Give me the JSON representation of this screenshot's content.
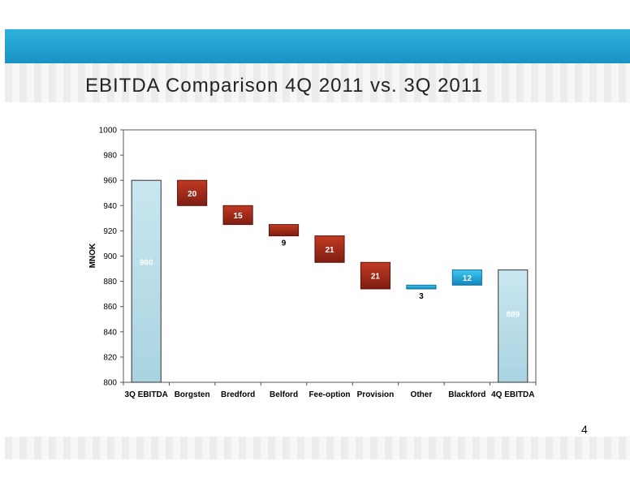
{
  "page": {
    "title": "EBITDA Comparison 4Q 2011 vs. 3Q 2011",
    "page_number": "4"
  },
  "colors": {
    "header_band": "#1e9fd0",
    "total_bar": "#b7dde8",
    "decrease": "#a52a1a",
    "increase": "#1aa9d6"
  },
  "chart_data": {
    "type": "bar",
    "subtype": "waterfall",
    "title": "",
    "xlabel": "",
    "ylabel": "MNOK",
    "ylim": [
      800,
      1000
    ],
    "ytick_step": 20,
    "grid": false,
    "categories": [
      "3Q EBITDA",
      "Borgsten",
      "Bredford",
      "Belford",
      "Fee-option",
      "Provision",
      "Other",
      "Blackford",
      "4Q EBITDA"
    ],
    "steps": [
      {
        "category": "3Q EBITDA",
        "kind": "total",
        "value": 960,
        "label": "960"
      },
      {
        "category": "Borgsten",
        "kind": "decrease",
        "value": 20,
        "label": "20"
      },
      {
        "category": "Bredford",
        "kind": "decrease",
        "value": 15,
        "label": "15"
      },
      {
        "category": "Belford",
        "kind": "decrease",
        "value": 9,
        "label": "9"
      },
      {
        "category": "Fee-option",
        "kind": "decrease",
        "value": 21,
        "label": "21"
      },
      {
        "category": "Provision",
        "kind": "decrease",
        "value": 21,
        "label": "21"
      },
      {
        "category": "Other",
        "kind": "increase",
        "value": 3,
        "label": "3"
      },
      {
        "category": "Blackford",
        "kind": "increase",
        "value": 12,
        "label": "12"
      },
      {
        "category": "4Q EBITDA",
        "kind": "total",
        "value": 889,
        "label": "889"
      }
    ]
  }
}
